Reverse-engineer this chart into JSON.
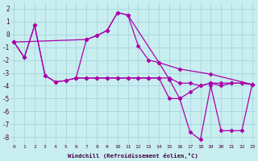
{
  "xlabel": "Windchill (Refroidissement éolien,°C)",
  "background_color": "#c8eef0",
  "grid_color": "#a0d0d8",
  "line_color": "#aa00aa",
  "x": [
    0,
    1,
    2,
    3,
    4,
    5,
    6,
    7,
    8,
    9,
    10,
    11,
    12,
    13,
    14,
    15,
    16,
    17,
    18,
    19,
    20,
    21,
    22,
    23
  ],
  "series": [
    {
      "x": [
        0,
        1,
        2,
        3,
        4,
        5,
        6,
        7,
        8,
        9,
        10,
        11,
        12,
        13,
        14,
        15,
        16,
        17,
        18,
        19,
        20,
        21,
        22,
        23
      ],
      "y": [
        -0.6,
        -1.8,
        0.7,
        -3.2,
        -3.7,
        -3.6,
        -3.4,
        -0.4,
        -0.1,
        0.3,
        1.7,
        1.5,
        -0.9,
        -2.0,
        -2.2,
        -3.5,
        -5.0,
        -7.6,
        -8.2,
        -4.0,
        -7.5,
        -7.5,
        -7.5,
        -3.9
      ]
    },
    {
      "x": [
        0,
        1,
        2,
        3,
        4,
        5,
        6,
        7,
        8,
        9,
        10,
        11,
        12,
        13,
        14,
        15,
        16,
        17,
        18,
        19,
        20,
        21,
        22,
        23
      ],
      "y": [
        -0.6,
        -1.8,
        0.7,
        -3.2,
        -3.7,
        -3.6,
        -3.4,
        -3.4,
        -3.4,
        -3.4,
        -3.4,
        -3.4,
        -3.4,
        -3.4,
        -3.4,
        -3.4,
        -3.8,
        -3.8,
        -4.0,
        -3.8,
        -3.8,
        -3.8,
        -3.8,
        -3.9
      ]
    },
    {
      "x": [
        0,
        7,
        8,
        9,
        10,
        11,
        14,
        16,
        19,
        23
      ],
      "y": [
        -0.6,
        -0.4,
        -0.1,
        0.3,
        1.7,
        1.5,
        -2.2,
        -2.7,
        -3.1,
        -3.9
      ]
    },
    {
      "x": [
        6,
        7,
        8,
        9,
        10,
        11,
        12,
        13,
        14,
        15,
        16,
        17,
        18,
        19,
        20,
        21,
        22,
        23
      ],
      "y": [
        -3.4,
        -3.4,
        -3.4,
        -3.4,
        -3.4,
        -3.4,
        -3.4,
        -3.4,
        -3.4,
        -5.0,
        -5.0,
        -4.5,
        -4.0,
        -3.8,
        -4.0,
        -3.8,
        -3.8,
        -3.9
      ]
    }
  ],
  "ylim": [
    -8.5,
    2.5
  ],
  "yticks": [
    -8,
    -7,
    -6,
    -5,
    -4,
    -3,
    -2,
    -1,
    0,
    1,
    2
  ],
  "xlim": [
    -0.3,
    23.3
  ]
}
